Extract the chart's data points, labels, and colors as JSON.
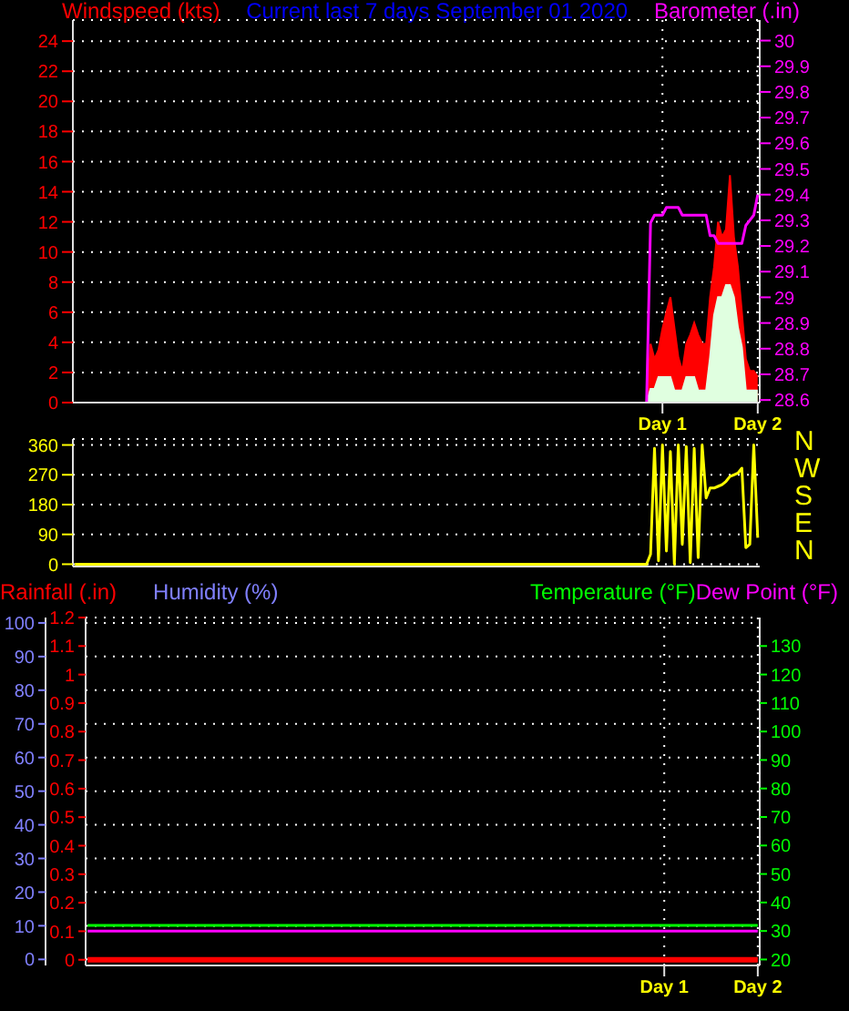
{
  "chart_data": [
    {
      "type": "area",
      "title": "Current last 7 days September 01 2020",
      "ylabel": "Windspeed (kts)",
      "y2label": "Barometer (.in)",
      "categories": [
        null,
        null,
        null,
        null,
        null,
        null,
        null,
        null,
        null,
        null,
        null,
        null,
        null,
        null,
        null,
        null,
        null,
        null,
        null,
        null,
        null,
        null,
        null,
        null,
        null,
        null,
        null,
        null,
        null,
        null,
        null,
        null,
        null,
        null,
        null,
        null,
        null,
        null,
        null,
        null,
        null,
        null,
        null,
        null,
        null,
        null,
        null,
        null,
        null,
        null,
        null,
        null,
        null,
        null,
        null,
        null,
        null,
        null,
        null,
        null,
        null,
        null,
        null,
        null,
        null,
        null,
        null,
        null,
        null,
        null,
        null,
        null,
        null,
        null,
        null,
        null,
        null,
        null,
        null,
        null,
        null,
        null,
        null,
        null,
        null,
        null,
        null,
        null,
        null,
        null,
        null,
        null,
        null,
        null,
        null,
        null,
        null,
        null,
        null,
        null,
        null,
        null,
        null,
        null,
        null,
        null,
        null,
        null,
        null,
        null,
        null,
        null,
        null,
        null,
        null,
        null,
        null,
        null,
        null,
        null,
        null,
        null,
        null,
        null,
        null,
        null,
        null,
        null,
        null,
        null,
        null,
        null,
        null,
        null,
        null,
        null,
        null,
        null,
        null,
        null,
        null,
        null,
        null,
        null,
        null,
        null,
        null,
        null,
        "Day 1",
        null,
        null,
        null,
        null,
        null,
        null,
        null,
        null,
        null,
        null,
        null,
        null,
        null,
        null,
        null,
        null,
        null,
        null,
        null,
        null,
        null,
        null,
        null,
        "Day 2"
      ],
      "ylim": [
        0,
        25.4
      ],
      "yticks": [
        0,
        2,
        4,
        6,
        8,
        10,
        12,
        14,
        16,
        18,
        20,
        22,
        24
      ],
      "y2lim": [
        28.59,
        30.08
      ],
      "y2ticks": [
        28.6,
        28.7,
        28.8,
        28.9,
        29,
        29.1,
        29.2,
        29.3,
        29.4,
        29.5,
        29.6,
        29.7,
        29.8,
        29.9,
        30
      ],
      "grid": true,
      "series": [
        {
          "color": "#ff0000",
          "values": [
            0,
            0,
            0,
            0,
            0,
            0,
            0,
            0,
            0,
            0,
            0,
            0,
            0,
            0,
            0,
            0,
            0,
            0,
            0,
            0,
            0,
            0,
            0,
            0,
            0,
            0,
            0,
            0,
            0,
            0,
            0,
            0,
            0,
            0,
            0,
            0,
            0,
            0,
            0,
            0,
            0,
            0,
            0,
            0,
            0,
            0,
            0,
            0,
            0,
            0,
            0,
            0,
            0,
            0,
            0,
            0,
            0,
            0,
            0,
            0,
            0,
            0,
            0,
            0,
            0,
            0,
            0,
            0,
            0,
            0,
            0,
            0,
            0,
            0,
            0,
            0,
            0,
            0,
            0,
            0,
            0,
            0,
            0,
            0,
            0,
            0,
            0,
            0,
            0,
            0,
            0,
            0,
            0,
            0,
            0,
            0,
            0,
            0,
            0,
            0,
            0,
            0,
            0,
            0,
            0,
            0,
            0,
            0,
            0,
            0,
            0,
            0,
            0,
            0,
            0,
            0,
            0,
            0,
            0,
            0,
            0,
            0,
            0,
            0,
            0,
            0,
            0,
            0,
            0,
            0,
            0,
            0,
            0,
            0,
            0,
            0,
            0,
            0,
            0,
            0,
            0,
            0,
            0,
            0,
            0,
            3.9,
            2.9,
            3.5,
            4.9,
            6.0,
            7.0,
            5.0,
            3.0,
            2.1,
            3.9,
            4.5,
            5.3,
            4.5,
            3.9,
            3.9,
            7.0,
            9.0,
            12.0,
            11.0,
            11.5,
            15.1,
            11.0,
            9.0,
            6.0,
            2.9,
            2.1,
            2.1,
            1.7
          ]
        },
        {
          "color": "#e0ffe0",
          "values": [
            0,
            0,
            0,
            0,
            0,
            0,
            0,
            0,
            0,
            0,
            0,
            0,
            0,
            0,
            0,
            0,
            0,
            0,
            0,
            0,
            0,
            0,
            0,
            0,
            0,
            0,
            0,
            0,
            0,
            0,
            0,
            0,
            0,
            0,
            0,
            0,
            0,
            0,
            0,
            0,
            0,
            0,
            0,
            0,
            0,
            0,
            0,
            0,
            0,
            0,
            0,
            0,
            0,
            0,
            0,
            0,
            0,
            0,
            0,
            0,
            0,
            0,
            0,
            0,
            0,
            0,
            0,
            0,
            0,
            0,
            0,
            0,
            0,
            0,
            0,
            0,
            0,
            0,
            0,
            0,
            0,
            0,
            0,
            0,
            0,
            0,
            0,
            0,
            0,
            0,
            0,
            0,
            0,
            0,
            0,
            0,
            0,
            0,
            0,
            0,
            0,
            0,
            0,
            0,
            0,
            0,
            0,
            0,
            0,
            0,
            0,
            0,
            0,
            0,
            0,
            0,
            0,
            0,
            0,
            0,
            0,
            0,
            0,
            0,
            0,
            0,
            0,
            0,
            0,
            0,
            0,
            0,
            0,
            0,
            0,
            0,
            0,
            0,
            0,
            0,
            0,
            0,
            0,
            0,
            0,
            0.9,
            0.9,
            1.7,
            1.7,
            1.7,
            1.7,
            0.8,
            0.8,
            0.8,
            1.7,
            1.7,
            1.7,
            0.8,
            0.8,
            0.8,
            3.0,
            5.8,
            7.0,
            7.0,
            7.8,
            7.8,
            7.0,
            5.0,
            3.7,
            0.8,
            0.8,
            0.8,
            0.8
          ]
        },
        {
          "type": "line",
          "axis": "y2",
          "color": "#ff00ff",
          "values": [
            null,
            null,
            null,
            null,
            null,
            null,
            null,
            null,
            null,
            null,
            null,
            null,
            null,
            null,
            null,
            null,
            null,
            null,
            null,
            null,
            null,
            null,
            null,
            null,
            null,
            null,
            null,
            null,
            null,
            null,
            null,
            null,
            null,
            null,
            null,
            null,
            null,
            null,
            null,
            null,
            null,
            null,
            null,
            null,
            null,
            null,
            null,
            null,
            null,
            null,
            null,
            null,
            null,
            null,
            null,
            null,
            null,
            null,
            null,
            null,
            null,
            null,
            null,
            null,
            null,
            null,
            null,
            null,
            null,
            null,
            null,
            null,
            null,
            null,
            null,
            null,
            null,
            null,
            null,
            null,
            null,
            null,
            null,
            null,
            null,
            null,
            null,
            null,
            null,
            null,
            null,
            null,
            null,
            null,
            null,
            null,
            null,
            null,
            null,
            null,
            null,
            null,
            null,
            null,
            null,
            null,
            null,
            null,
            null,
            null,
            null,
            null,
            null,
            null,
            null,
            null,
            null,
            null,
            null,
            null,
            null,
            null,
            null,
            null,
            null,
            null,
            null,
            null,
            null,
            null,
            null,
            null,
            null,
            null,
            null,
            null,
            null,
            null,
            null,
            null,
            null,
            null,
            null,
            null,
            28.59,
            29.29,
            29.32,
            29.32,
            29.32,
            29.35,
            29.35,
            29.35,
            29.35,
            29.32,
            29.32,
            29.32,
            29.32,
            29.32,
            29.32,
            29.32,
            29.24,
            29.24,
            29.21,
            29.21,
            29.21,
            29.21,
            29.21,
            29.21,
            29.21,
            29.28,
            29.3,
            29.32,
            29.4
          ]
        }
      ]
    },
    {
      "type": "line",
      "tick_labels": "y",
      "categories": [
        null,
        null,
        null,
        null,
        null,
        null,
        null,
        null,
        null,
        null,
        null,
        null,
        null,
        null,
        null,
        null,
        null,
        null,
        null,
        null,
        null,
        null,
        null,
        null,
        null,
        null,
        null,
        null,
        null,
        null,
        null,
        null,
        null,
        null,
        null,
        null,
        null,
        null,
        null,
        null,
        null,
        null,
        null,
        null,
        null,
        null,
        null,
        null,
        null,
        null,
        null,
        null,
        null,
        null,
        null,
        null,
        null,
        null,
        null,
        null,
        null,
        null,
        null,
        null,
        null,
        null,
        null,
        null,
        null,
        null,
        null,
        null,
        null,
        null,
        null,
        null,
        null,
        null,
        null,
        null,
        null,
        null,
        null,
        null,
        null,
        null,
        null,
        null,
        null,
        null,
        null,
        null,
        null,
        null,
        null,
        null,
        null,
        null,
        null,
        null,
        null,
        null,
        null,
        null,
        null,
        null,
        null,
        null,
        null,
        null,
        null,
        null,
        null,
        null,
        null,
        null,
        null,
        null,
        null,
        null,
        null,
        null,
        null,
        null,
        null,
        null,
        null,
        null,
        null,
        null,
        null,
        null,
        null,
        null,
        null,
        null,
        null,
        null,
        null,
        null,
        null,
        null,
        null,
        null,
        null,
        null,
        null,
        null,
        null,
        null,
        null,
        null,
        null,
        null,
        null,
        null,
        null,
        null,
        null,
        null,
        null,
        null,
        null,
        null,
        null,
        null,
        null,
        null,
        null,
        null,
        null,
        null,
        null
      ],
      "ylim": [
        -7,
        378
      ],
      "yticks": [
        0,
        90,
        180,
        270,
        360
      ],
      "grid": "y",
      "annotations": [
        "N",
        "W",
        "S",
        "E",
        "N"
      ],
      "series": [
        {
          "color": "#ffff00",
          "values": [
            0,
            0,
            0,
            0,
            0,
            0,
            0,
            0,
            0,
            0,
            0,
            0,
            0,
            0,
            0,
            0,
            0,
            0,
            0,
            0,
            0,
            0,
            0,
            0,
            0,
            0,
            0,
            0,
            0,
            0,
            0,
            0,
            0,
            0,
            0,
            0,
            0,
            0,
            0,
            0,
            0,
            0,
            0,
            0,
            0,
            0,
            0,
            0,
            0,
            0,
            0,
            0,
            0,
            0,
            0,
            0,
            0,
            0,
            0,
            0,
            0,
            0,
            0,
            0,
            0,
            0,
            0,
            0,
            0,
            0,
            0,
            0,
            0,
            0,
            0,
            0,
            0,
            0,
            0,
            0,
            0,
            0,
            0,
            0,
            0,
            0,
            0,
            0,
            0,
            0,
            0,
            0,
            0,
            0,
            0,
            0,
            0,
            0,
            0,
            0,
            0,
            0,
            0,
            0,
            0,
            0,
            0,
            0,
            0,
            0,
            0,
            0,
            0,
            0,
            0,
            0,
            0,
            0,
            0,
            0,
            0,
            0,
            0,
            0,
            0,
            0,
            0,
            0,
            0,
            0,
            0,
            0,
            0,
            0,
            0,
            0,
            0,
            0,
            0,
            0,
            0,
            0,
            0,
            0,
            0,
            30,
            350,
            10,
            360,
            40,
            340,
            0,
            360,
            60,
            355,
            5,
            350,
            20,
            360,
            200,
            230,
            230,
            235,
            240,
            250,
            265,
            270,
            275,
            290,
            50,
            60,
            360,
            80
          ]
        }
      ]
    },
    {
      "type": "line",
      "ylabel": "Rainfall (.in)",
      "y3label": "Humidity (%)",
      "categories": [
        null,
        null,
        null,
        null,
        null,
        null,
        null,
        null,
        null,
        null,
        null,
        null,
        null,
        null,
        null,
        null,
        null,
        null,
        null,
        null,
        null,
        null,
        null,
        null,
        null,
        null,
        null,
        null,
        null,
        null,
        null,
        null,
        null,
        null,
        null,
        null,
        null,
        null,
        null,
        null,
        null,
        null,
        null,
        null,
        null,
        null,
        null,
        null,
        null,
        null,
        null,
        null,
        null,
        null,
        null,
        null,
        null,
        null,
        null,
        null,
        null,
        null,
        null,
        null,
        null,
        null,
        null,
        null,
        null,
        null,
        null,
        null,
        null,
        null,
        null,
        null,
        null,
        null,
        null,
        null,
        null,
        null,
        null,
        null,
        null,
        null,
        null,
        null,
        null,
        null,
        null,
        null,
        null,
        null,
        null,
        null,
        null,
        null,
        null,
        null,
        null,
        null,
        null,
        null,
        null,
        null,
        null,
        null,
        null,
        null,
        null,
        null,
        null,
        null,
        null,
        null,
        null,
        null,
        null,
        null,
        null,
        null,
        null,
        null,
        null,
        null,
        null,
        null,
        null,
        null,
        null,
        null,
        null,
        null,
        null,
        null,
        null,
        null,
        null,
        null,
        null,
        null,
        null,
        null,
        null,
        null,
        null,
        null,
        "Day 1",
        null,
        null,
        null,
        null,
        null,
        null,
        null,
        null,
        null,
        null,
        null,
        null,
        null,
        null,
        null,
        null,
        null,
        null,
        null,
        null,
        null,
        null,
        null,
        "Day 2"
      ],
      "ylim": [
        -0.02,
        1.2
      ],
      "yticks": [
        0,
        0.1,
        0.2,
        0.3,
        0.4,
        0.5,
        0.6,
        0.7,
        0.8,
        0.9,
        1,
        1.1,
        1.2
      ],
      "y3lim": [
        -1.8,
        101.6
      ],
      "y3ticks": [
        0,
        10,
        20,
        30,
        40,
        50,
        60,
        70,
        80,
        90,
        100
      ],
      "y2lim": [
        17.9,
        140
      ],
      "y2ticks": [
        20,
        30,
        40,
        50,
        60,
        70,
        80,
        90,
        100,
        110,
        120,
        130
      ],
      "grid": true,
      "legend": "top right",
      "series": [
        {
          "color": "#ff0000",
          "values": [
            0,
            0,
            0,
            0,
            0,
            0,
            0,
            0,
            0,
            0,
            0,
            0,
            0,
            0,
            0,
            0,
            0,
            0,
            0,
            0,
            0,
            0,
            0,
            0,
            0,
            0,
            0,
            0,
            0,
            0,
            0,
            0,
            0,
            0,
            0,
            0,
            0,
            0,
            0,
            0,
            0,
            0,
            0,
            0,
            0,
            0,
            0,
            0,
            0,
            0,
            0,
            0,
            0,
            0,
            0,
            0,
            0,
            0,
            0,
            0,
            0,
            0,
            0,
            0,
            0,
            0,
            0,
            0,
            0,
            0,
            0,
            0,
            0,
            0,
            0,
            0,
            0,
            0,
            0,
            0,
            0,
            0,
            0,
            0,
            0,
            0,
            0,
            0,
            0,
            0,
            0,
            0,
            0,
            0,
            0,
            0,
            0,
            0,
            0,
            0,
            0,
            0,
            0,
            0,
            0,
            0,
            0,
            0,
            0,
            0,
            0,
            0,
            0,
            0,
            0,
            0,
            0,
            0,
            0,
            0,
            0,
            0,
            0,
            0,
            0,
            0,
            0,
            0,
            0,
            0,
            0,
            0,
            0,
            0,
            0,
            0,
            0,
            0,
            0,
            0,
            0,
            0,
            0,
            0,
            0,
            0,
            0,
            0,
            0,
            0,
            0,
            0,
            0,
            0,
            0,
            0,
            0,
            0,
            0,
            0,
            0,
            0,
            0,
            0,
            0,
            0,
            0,
            0,
            0,
            0,
            0,
            0,
            0
          ]
        },
        {
          "axis": "y2",
          "name": "Temperature (°F)",
          "color": "#00ff00",
          "values": [
            32,
            32,
            32,
            32,
            32,
            32,
            32,
            32,
            32,
            32,
            32,
            32,
            32,
            32,
            32,
            32,
            32,
            32,
            32,
            32,
            32,
            32,
            32,
            32,
            32,
            32,
            32,
            32,
            32,
            32,
            32,
            32,
            32,
            32,
            32,
            32,
            32,
            32,
            32,
            32,
            32,
            32,
            32,
            32,
            32,
            32,
            32,
            32,
            32,
            32,
            32,
            32,
            32,
            32,
            32,
            32,
            32,
            32,
            32,
            32,
            32,
            32,
            32,
            32,
            32,
            32,
            32,
            32,
            32,
            32,
            32,
            32,
            32,
            32,
            32,
            32,
            32,
            32,
            32,
            32,
            32,
            32,
            32,
            32,
            32,
            32,
            32,
            32,
            32,
            32,
            32,
            32,
            32,
            32,
            32,
            32,
            32,
            32,
            32,
            32,
            32,
            32,
            32,
            32,
            32,
            32,
            32,
            32,
            32,
            32,
            32,
            32,
            32,
            32,
            32,
            32,
            32,
            32,
            32,
            32,
            32,
            32,
            32,
            32,
            32,
            32,
            32,
            32,
            32,
            32,
            32,
            32,
            32,
            32,
            32,
            32,
            32,
            32,
            32,
            32,
            32,
            32,
            32,
            32,
            32,
            32,
            32,
            32,
            32,
            32,
            32,
            32,
            32,
            32,
            32,
            32,
            32,
            32,
            32,
            32,
            32,
            32,
            32,
            32,
            32,
            32,
            32,
            32,
            32,
            32,
            32,
            32,
            32
          ]
        },
        {
          "axis": "y2",
          "name": "Dew Point (°F)",
          "color": "#ff00ff",
          "values": [
            30,
            30,
            30,
            30,
            30,
            30,
            30,
            30,
            30,
            30,
            30,
            30,
            30,
            30,
            30,
            30,
            30,
            30,
            30,
            30,
            30,
            30,
            30,
            30,
            30,
            30,
            30,
            30,
            30,
            30,
            30,
            30,
            30,
            30,
            30,
            30,
            30,
            30,
            30,
            30,
            30,
            30,
            30,
            30,
            30,
            30,
            30,
            30,
            30,
            30,
            30,
            30,
            30,
            30,
            30,
            30,
            30,
            30,
            30,
            30,
            30,
            30,
            30,
            30,
            30,
            30,
            30,
            30,
            30,
            30,
            30,
            30,
            30,
            30,
            30,
            30,
            30,
            30,
            30,
            30,
            30,
            30,
            30,
            30,
            30,
            30,
            30,
            30,
            30,
            30,
            30,
            30,
            30,
            30,
            30,
            30,
            30,
            30,
            30,
            30,
            30,
            30,
            30,
            30,
            30,
            30,
            30,
            30,
            30,
            30,
            30,
            30,
            30,
            30,
            30,
            30,
            30,
            30,
            30,
            30,
            30,
            30,
            30,
            30,
            30,
            30,
            30,
            30,
            30,
            30,
            30,
            30,
            30,
            30,
            30,
            30,
            30,
            30,
            30,
            30,
            30,
            30,
            30,
            30,
            30,
            30,
            30,
            30,
            30,
            30,
            30,
            30,
            30,
            30,
            30,
            30,
            30,
            30,
            30,
            30,
            30,
            30,
            30,
            30,
            30,
            30,
            30,
            30,
            30,
            30,
            30,
            30,
            30
          ]
        }
      ]
    }
  ]
}
